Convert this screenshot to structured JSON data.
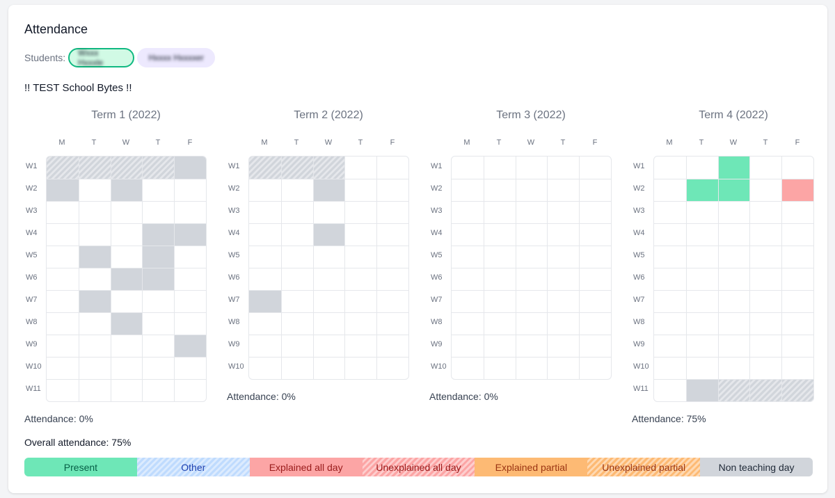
{
  "title": "Attendance",
  "students": {
    "label": "Students:",
    "chips": [
      {
        "name": "Wxxx Hxxxle",
        "selected": true
      },
      {
        "name": "Hxxxx Hxxxxer",
        "selected": false
      }
    ]
  },
  "school_name": "!! TEST School Bytes !!",
  "day_labels": [
    "M",
    "T",
    "W",
    "T",
    "F"
  ],
  "week_labels": [
    "W1",
    "W2",
    "W3",
    "W4",
    "W5",
    "W6",
    "W7",
    "W8",
    "W9",
    "W10",
    "W11"
  ],
  "cell_legend": {
    "N": "non teaching day",
    "H": "non teaching day (hatched)",
    "P": "present",
    "E": "explained all day",
    "": "no record"
  },
  "terms": [
    {
      "title": "Term 1 (2022)",
      "attendance": "Attendance: 0%",
      "grid": [
        [
          "H",
          "H",
          "H",
          "H",
          "N"
        ],
        [
          "N",
          "",
          "N",
          "",
          ""
        ],
        [
          "",
          "",
          "",
          "",
          ""
        ],
        [
          "",
          "",
          "",
          "N",
          "N"
        ],
        [
          "",
          "N",
          "",
          "N",
          ""
        ],
        [
          "",
          "",
          "N",
          "N",
          ""
        ],
        [
          "",
          "N",
          "",
          "",
          ""
        ],
        [
          "",
          "",
          "N",
          "",
          ""
        ],
        [
          "",
          "",
          "",
          "",
          "N"
        ],
        [
          "",
          "",
          "",
          "",
          ""
        ],
        [
          "",
          "",
          "",
          "",
          ""
        ]
      ]
    },
    {
      "title": "Term 2 (2022)",
      "attendance": "Attendance: 0%",
      "grid": [
        [
          "H",
          "H",
          "H",
          "",
          ""
        ],
        [
          "",
          "",
          "N",
          "",
          ""
        ],
        [
          "",
          "",
          "",
          "",
          ""
        ],
        [
          "",
          "",
          "N",
          "",
          ""
        ],
        [
          "",
          "",
          "",
          "",
          ""
        ],
        [
          "",
          "",
          "",
          "",
          ""
        ],
        [
          "N",
          "",
          "",
          "",
          ""
        ],
        [
          "",
          "",
          "",
          "",
          ""
        ],
        [
          "",
          "",
          "",
          "",
          ""
        ],
        [
          "",
          "",
          "",
          "",
          ""
        ]
      ]
    },
    {
      "title": "Term 3 (2022)",
      "attendance": "Attendance: 0%",
      "grid": [
        [
          "",
          "",
          "",
          "",
          ""
        ],
        [
          "",
          "",
          "",
          "",
          ""
        ],
        [
          "",
          "",
          "",
          "",
          ""
        ],
        [
          "",
          "",
          "",
          "",
          ""
        ],
        [
          "",
          "",
          "",
          "",
          ""
        ],
        [
          "",
          "",
          "",
          "",
          ""
        ],
        [
          "",
          "",
          "",
          "",
          ""
        ],
        [
          "",
          "",
          "",
          "",
          ""
        ],
        [
          "",
          "",
          "",
          "",
          ""
        ],
        [
          "",
          "",
          "",
          "",
          ""
        ]
      ]
    },
    {
      "title": "Term 4 (2022)",
      "attendance": "Attendance: 75%",
      "grid": [
        [
          "",
          "",
          "P",
          "",
          ""
        ],
        [
          "",
          "P",
          "P",
          "",
          "E"
        ],
        [
          "",
          "",
          "",
          "",
          ""
        ],
        [
          "",
          "",
          "",
          "",
          ""
        ],
        [
          "",
          "",
          "",
          "",
          ""
        ],
        [
          "",
          "",
          "",
          "",
          ""
        ],
        [
          "",
          "",
          "",
          "",
          ""
        ],
        [
          "",
          "",
          "",
          "",
          ""
        ],
        [
          "",
          "",
          "",
          "",
          ""
        ],
        [
          "",
          "",
          "",
          "",
          ""
        ],
        [
          "",
          "N",
          "H",
          "H",
          "H"
        ]
      ]
    }
  ],
  "overall": "Overall attendance: 75%",
  "legend": [
    {
      "label": "Present",
      "color": "#6ee7b7",
      "text_color": "#065f46",
      "pattern": "solid"
    },
    {
      "label": "Other",
      "color": "#bfdbfe",
      "text_color": "#1e40af",
      "pattern": "hatched"
    },
    {
      "label": "Explained all day",
      "color": "#fca5a5",
      "text_color": "#991b1b",
      "pattern": "solid"
    },
    {
      "label": "Unexplained all day",
      "color": "#fca5a5",
      "text_color": "#991b1b",
      "pattern": "hatched"
    },
    {
      "label": "Explained partial",
      "color": "#fdba74",
      "text_color": "#9a3412",
      "pattern": "solid"
    },
    {
      "label": "Unexplained partial",
      "color": "#fdba74",
      "text_color": "#9a3412",
      "pattern": "hatched"
    },
    {
      "label": "Non teaching day",
      "color": "#d1d5db",
      "text_color": "#1f2937",
      "pattern": "solid"
    }
  ]
}
